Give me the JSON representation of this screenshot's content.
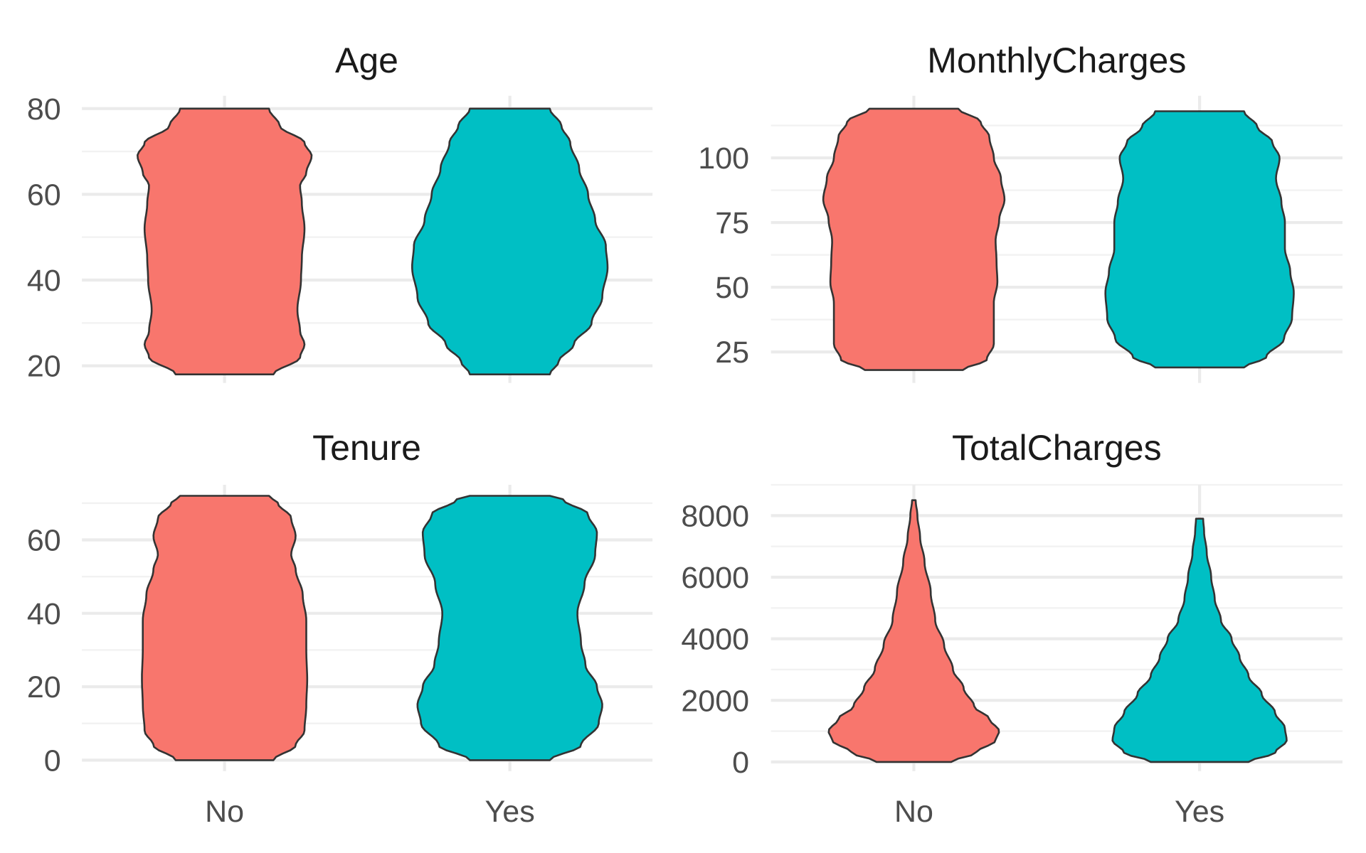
{
  "chart_data": [
    {
      "type": "violin",
      "title": "Age",
      "categories": [
        "No",
        "Yes"
      ],
      "ylim": [
        16,
        83
      ],
      "y_ticks": [
        20,
        40,
        60,
        80
      ],
      "y_tick_labels": [
        "20",
        "40",
        "60",
        "80"
      ],
      "show_x_labels": false,
      "series": [
        {
          "category": "No",
          "color": "#F8766D",
          "density_profile": [
            [
              18,
              0.55
            ],
            [
              22,
              0.85
            ],
            [
              25,
              0.9
            ],
            [
              28,
              0.85
            ],
            [
              33,
              0.82
            ],
            [
              40,
              0.86
            ],
            [
              45,
              0.87
            ],
            [
              52,
              0.9
            ],
            [
              58,
              0.87
            ],
            [
              62,
              0.85
            ],
            [
              65,
              0.92
            ],
            [
              69,
              0.98
            ],
            [
              72,
              0.9
            ],
            [
              76,
              0.62
            ],
            [
              80,
              0.5
            ]
          ]
        },
        {
          "category": "Yes",
          "color": "#00BFC4",
          "density_profile": [
            [
              18,
              0.45
            ],
            [
              21,
              0.55
            ],
            [
              25,
              0.72
            ],
            [
              30,
              0.92
            ],
            [
              36,
              1.04
            ],
            [
              43,
              1.1
            ],
            [
              48,
              1.08
            ],
            [
              54,
              0.96
            ],
            [
              60,
              0.88
            ],
            [
              66,
              0.78
            ],
            [
              72,
              0.68
            ],
            [
              76,
              0.58
            ],
            [
              80,
              0.45
            ]
          ]
        }
      ]
    },
    {
      "type": "violin",
      "title": "MonthlyCharges",
      "categories": [
        "No",
        "Yes"
      ],
      "ylim": [
        13,
        124
      ],
      "y_ticks": [
        25,
        50,
        75,
        100
      ],
      "y_tick_labels": [
        "25",
        "50",
        "75",
        "100"
      ],
      "show_x_labels": false,
      "series": [
        {
          "category": "No",
          "color": "#F8766D",
          "density_profile": [
            [
              18,
              0.55
            ],
            [
              22,
              0.82
            ],
            [
              28,
              0.9
            ],
            [
              36,
              0.9
            ],
            [
              44,
              0.9
            ],
            [
              52,
              0.94
            ],
            [
              60,
              0.93
            ],
            [
              68,
              0.92
            ],
            [
              76,
              0.96
            ],
            [
              84,
              1.02
            ],
            [
              92,
              0.98
            ],
            [
              100,
              0.9
            ],
            [
              108,
              0.85
            ],
            [
              114,
              0.75
            ],
            [
              119,
              0.5
            ]
          ]
        },
        {
          "category": "Yes",
          "color": "#00BFC4",
          "density_profile": [
            [
              19,
              0.5
            ],
            [
              23,
              0.75
            ],
            [
              30,
              0.95
            ],
            [
              38,
              1.04
            ],
            [
              48,
              1.06
            ],
            [
              56,
              1.02
            ],
            [
              65,
              0.96
            ],
            [
              75,
              0.96
            ],
            [
              83,
              0.92
            ],
            [
              92,
              0.86
            ],
            [
              100,
              0.9
            ],
            [
              106,
              0.82
            ],
            [
              112,
              0.65
            ],
            [
              118,
              0.5
            ]
          ]
        }
      ]
    },
    {
      "type": "violin",
      "title": "Tenure",
      "categories": [
        "No",
        "Yes"
      ],
      "ylim": [
        -3,
        75
      ],
      "y_ticks": [
        0,
        20,
        40,
        60
      ],
      "y_tick_labels": [
        "0",
        "20",
        "40",
        "60"
      ],
      "show_x_labels": true,
      "series": [
        {
          "category": "No",
          "color": "#F8766D",
          "density_profile": [
            [
              0,
              0.55
            ],
            [
              4,
              0.8
            ],
            [
              8,
              0.9
            ],
            [
              15,
              0.92
            ],
            [
              22,
              0.93
            ],
            [
              30,
              0.92
            ],
            [
              38,
              0.92
            ],
            [
              45,
              0.88
            ],
            [
              52,
              0.8
            ],
            [
              56,
              0.75
            ],
            [
              61,
              0.8
            ],
            [
              66,
              0.75
            ],
            [
              70,
              0.6
            ],
            [
              72,
              0.5
            ]
          ]
        },
        {
          "category": "Yes",
          "color": "#00BFC4",
          "density_profile": [
            [
              0,
              0.45
            ],
            [
              4,
              0.8
            ],
            [
              10,
              1.0
            ],
            [
              15,
              1.04
            ],
            [
              20,
              0.98
            ],
            [
              26,
              0.85
            ],
            [
              32,
              0.8
            ],
            [
              40,
              0.76
            ],
            [
              48,
              0.84
            ],
            [
              56,
              0.96
            ],
            [
              62,
              0.98
            ],
            [
              67,
              0.88
            ],
            [
              71,
              0.6
            ],
            [
              72,
              0.45
            ]
          ]
        }
      ]
    },
    {
      "type": "violin",
      "title": "TotalCharges",
      "categories": [
        "No",
        "Yes"
      ],
      "ylim": [
        -300,
        9000
      ],
      "y_ticks": [
        0,
        2000,
        4000,
        6000,
        8000
      ],
      "y_tick_labels": [
        "0",
        "2000",
        "4000",
        "6000",
        "8000"
      ],
      "show_x_labels": true,
      "x_tick_labels": [
        "No",
        "Yes"
      ],
      "series": [
        {
          "category": "No",
          "color": "#F8766D",
          "density_profile": [
            [
              0,
              0.42
            ],
            [
              300,
              0.7
            ],
            [
              700,
              0.92
            ],
            [
              1000,
              0.96
            ],
            [
              1400,
              0.85
            ],
            [
              1800,
              0.68
            ],
            [
              2400,
              0.56
            ],
            [
              3000,
              0.44
            ],
            [
              3800,
              0.34
            ],
            [
              4600,
              0.24
            ],
            [
              5500,
              0.19
            ],
            [
              6500,
              0.12
            ],
            [
              7300,
              0.07
            ],
            [
              8000,
              0.04
            ],
            [
              8500,
              0.02
            ]
          ]
        },
        {
          "category": "Yes",
          "color": "#00BFC4",
          "density_profile": [
            [
              0,
              0.55
            ],
            [
              300,
              0.85
            ],
            [
              700,
              0.98
            ],
            [
              1100,
              0.96
            ],
            [
              1600,
              0.85
            ],
            [
              2200,
              0.7
            ],
            [
              2800,
              0.55
            ],
            [
              3400,
              0.45
            ],
            [
              4000,
              0.36
            ],
            [
              4600,
              0.24
            ],
            [
              5300,
              0.17
            ],
            [
              6000,
              0.13
            ],
            [
              6800,
              0.08
            ],
            [
              7500,
              0.05
            ],
            [
              7900,
              0.04
            ]
          ]
        }
      ]
    }
  ]
}
